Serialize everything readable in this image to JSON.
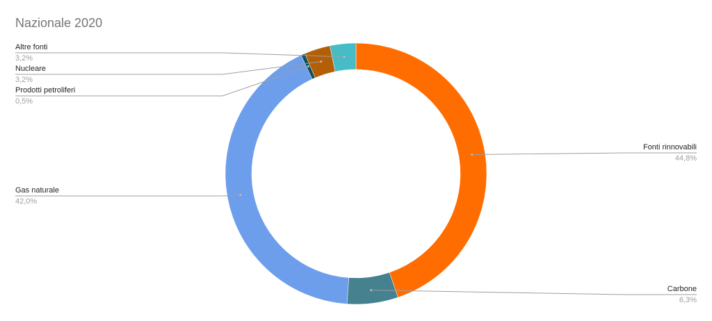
{
  "chart_data": {
    "type": "donut",
    "title": "Nazionale 2020",
    "categories": [
      "Fonti rinnovabili",
      "Carbone",
      "Gas naturale",
      "Prodotti petroliferi",
      "Nucleare",
      "Altre fonti"
    ],
    "values": [
      44.8,
      6.3,
      42.0,
      0.5,
      3.2,
      3.2
    ],
    "value_labels": [
      "44,8%",
      "6,3%",
      "42,0%",
      "0,5%",
      "3,2%",
      "3,2%"
    ],
    "colors": [
      "#ff6d01",
      "#45818e",
      "#6d9eeb",
      "#134f5c",
      "#b45f06",
      "#46bdc6"
    ]
  }
}
